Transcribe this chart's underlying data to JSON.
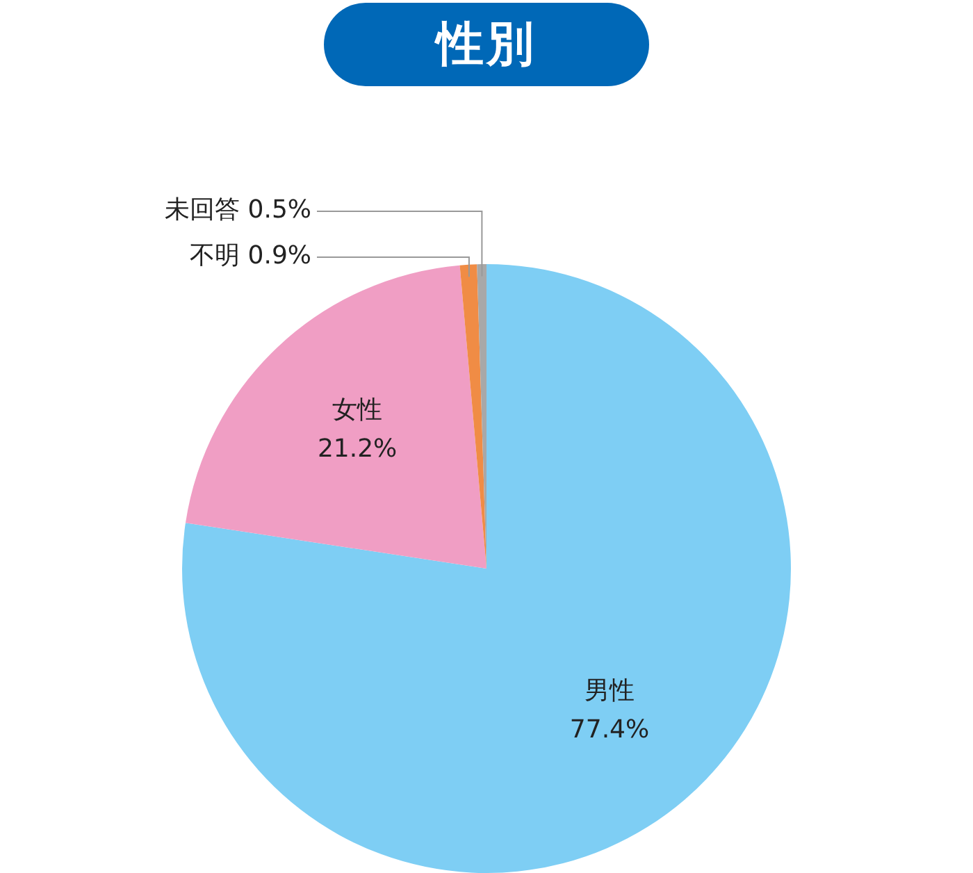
{
  "chart_data": {
    "type": "pie",
    "title": "性別",
    "categories": [
      "男性",
      "女性",
      "不明",
      "未回答"
    ],
    "values": [
      77.4,
      21.2,
      0.9,
      0.5
    ],
    "value_labels": [
      "77.4%",
      "21.2%",
      "0.9%",
      "0.5%"
    ],
    "colors": [
      "#7ecef4",
      "#f09ec4",
      "#f08c45",
      "#a8a8a8"
    ],
    "legend": false
  }
}
